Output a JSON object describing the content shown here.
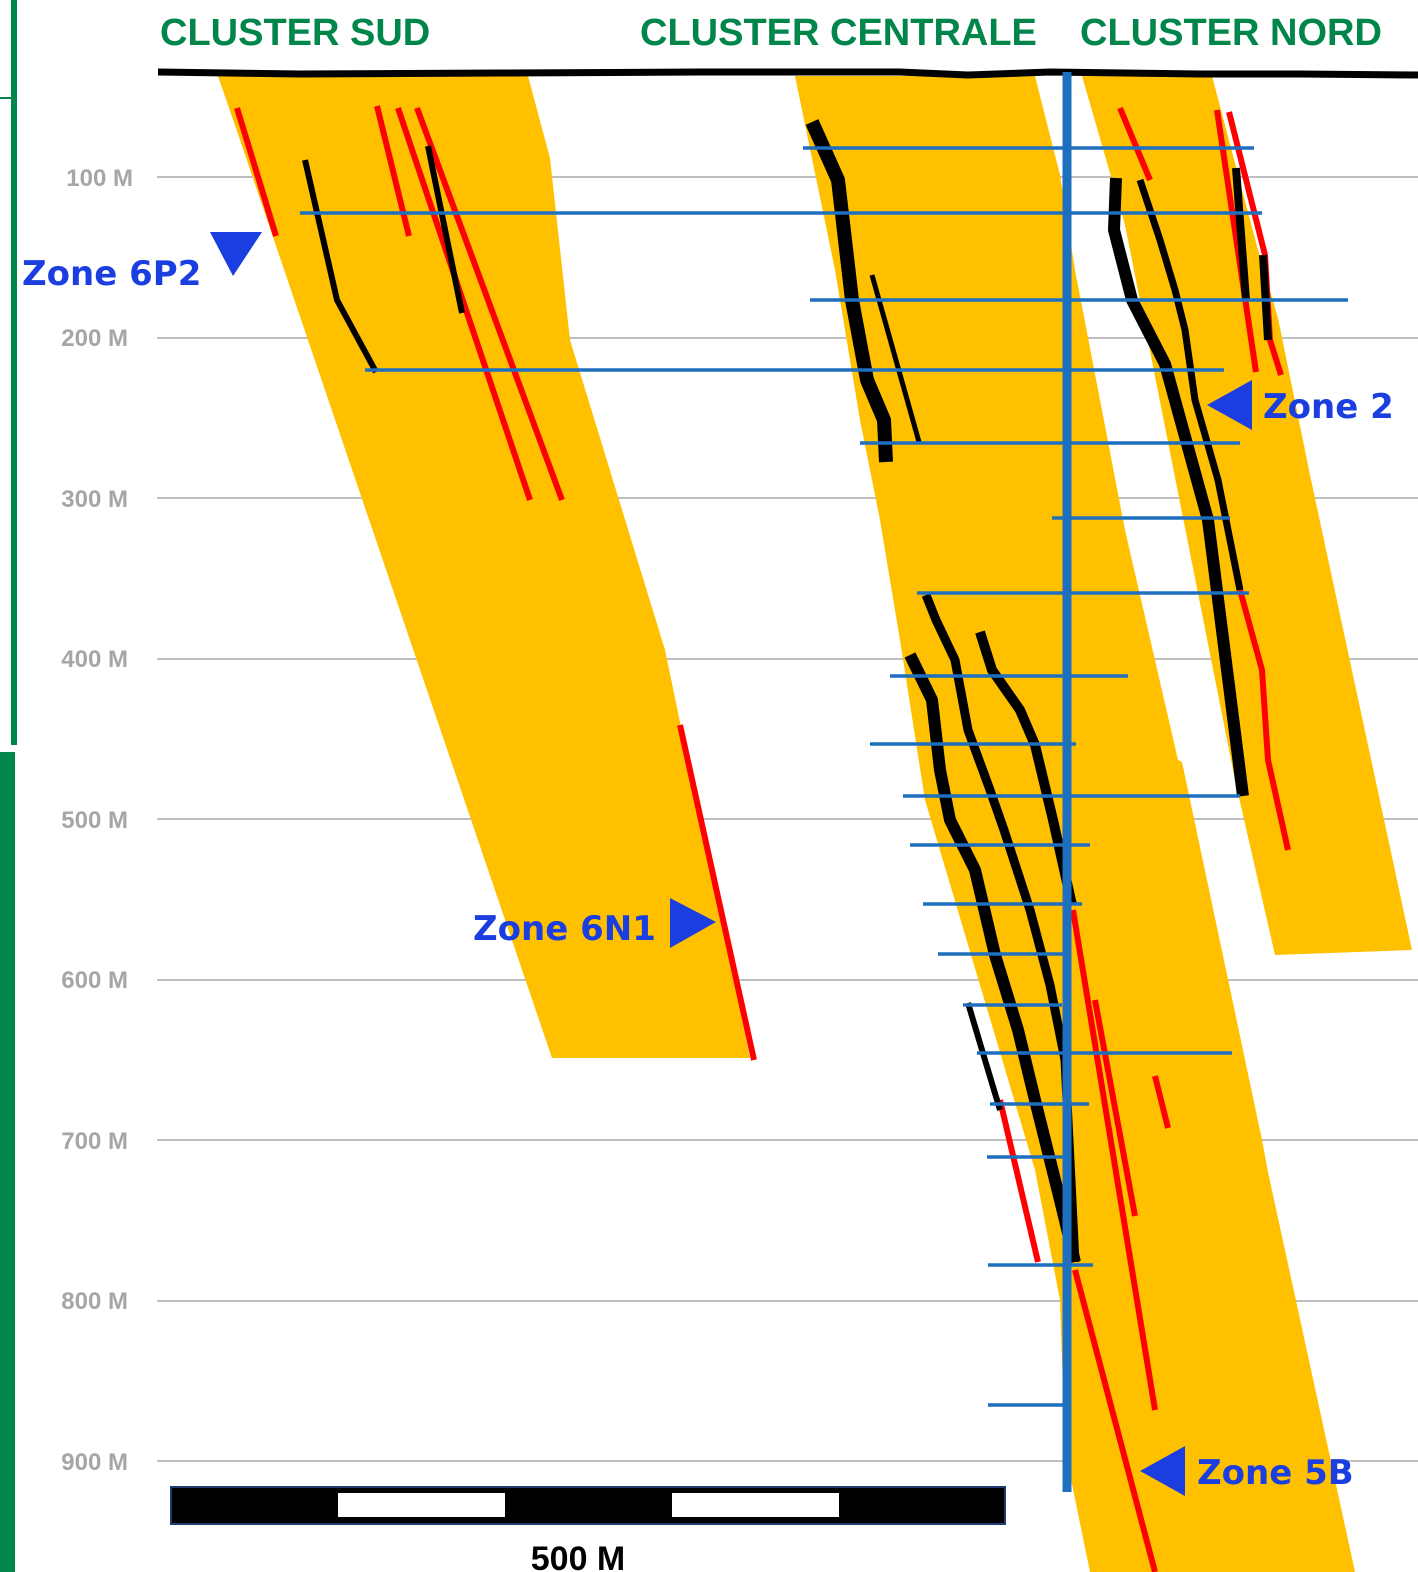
{
  "clusters": [
    {
      "id": "sud",
      "label": "CLUSTER SUD"
    },
    {
      "id": "centrale",
      "label": "CLUSTER CENTRALE"
    },
    {
      "id": "nord",
      "label": "CLUSTER NORD"
    }
  ],
  "depth_labels": [
    "100 M",
    "200 M",
    "300 M",
    "400 M",
    "500 M",
    "600 M",
    "700 M",
    "800 M",
    "900 M"
  ],
  "zones": [
    {
      "id": "6p2",
      "label": "Zone 6P2"
    },
    {
      "id": "6n1",
      "label": "Zone 6N1"
    },
    {
      "id": "2",
      "label": "Zone 2"
    },
    {
      "id": "5b",
      "label": "Zone 5B"
    }
  ],
  "scale_bar": {
    "label": "500 M"
  },
  "colors": {
    "title": "#00854a",
    "band": "#ffc000",
    "vein_red": "#ff0000",
    "vein_black": "#000000",
    "drillhole": "#1f6fbf",
    "zone_marker": "#1a3ee0",
    "grid": "#bfbfbf",
    "frame": "#00854a"
  }
}
